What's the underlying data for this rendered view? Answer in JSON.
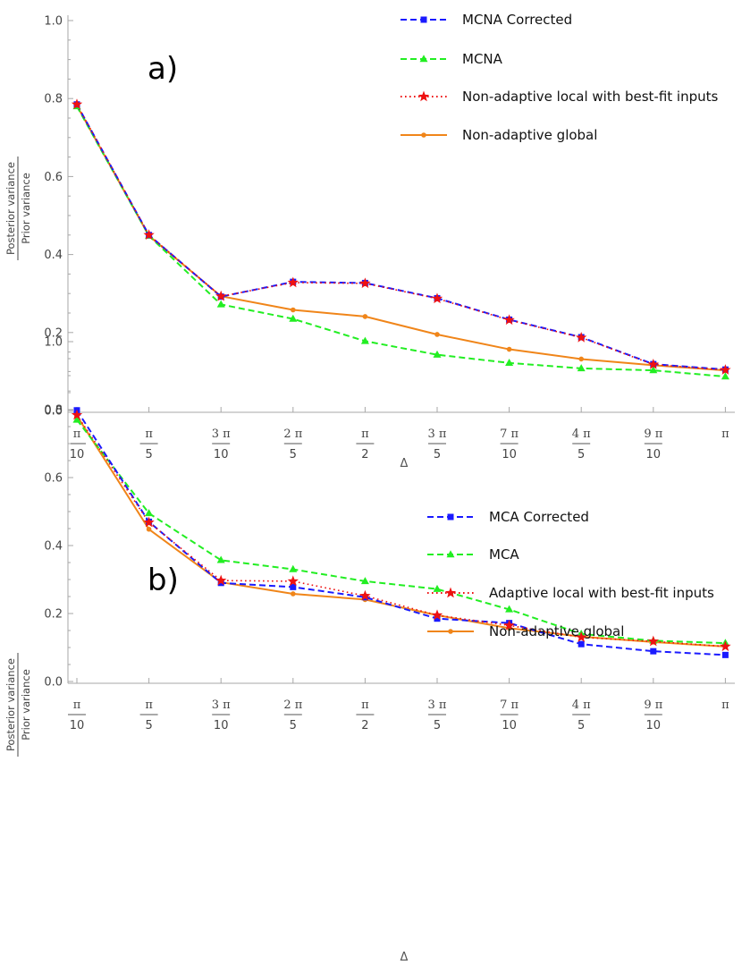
{
  "chart_data": [
    {
      "type": "line",
      "panel_label": "a)",
      "xlabel": "Δ",
      "ylabel_numerator": "Posterior variance",
      "ylabel_denominator": "Prior variance",
      "ylim": [
        0,
        1.0
      ],
      "yticks": [
        "0.0",
        "0.2",
        "0.4",
        "0.6",
        "0.8",
        "1.0"
      ],
      "x_tick_labels": [
        {
          "num": "π",
          "den": "10"
        },
        {
          "num": "π",
          "den": "5"
        },
        {
          "num": "3 π",
          "den": "10"
        },
        {
          "num": "2 π",
          "den": "5"
        },
        {
          "num": "π",
          "den": "2"
        },
        {
          "num": "3 π",
          "den": "5"
        },
        {
          "num": "7 π",
          "den": "10"
        },
        {
          "num": "4 π",
          "den": "5"
        },
        {
          "num": "9 π",
          "den": "10"
        },
        {
          "num": "π",
          "den": ""
        }
      ],
      "series": [
        {
          "name": "MCNA Corrected",
          "color": "#1a1aff",
          "style": "dashed",
          "marker": "square",
          "values": [
            0.785,
            0.45,
            0.292,
            0.33,
            0.327,
            0.288,
            0.233,
            0.188,
            0.119,
            0.105
          ]
        },
        {
          "name": "MCNA",
          "color": "#22ee22",
          "style": "dashed",
          "marker": "triangle",
          "values": [
            0.78,
            0.448,
            0.272,
            0.235,
            0.178,
            0.143,
            0.122,
            0.108,
            0.103,
            0.087
          ]
        },
        {
          "name": "Non-adaptive local with best-fit inputs",
          "color": "#ee1111",
          "style": "dotted",
          "marker": "star",
          "values": [
            0.785,
            0.45,
            0.293,
            0.328,
            0.326,
            0.287,
            0.232,
            0.187,
            0.118,
            0.104
          ]
        },
        {
          "name": "Non-adaptive global",
          "color": "#f08519",
          "style": "solid",
          "marker": "dot",
          "values": [
            0.782,
            0.448,
            0.293,
            0.258,
            0.241,
            0.195,
            0.157,
            0.132,
            0.116,
            0.103
          ]
        }
      ]
    },
    {
      "type": "line",
      "panel_label": "b)",
      "xlabel": "Δ",
      "ylabel_numerator": "Posterior variance",
      "ylabel_denominator": "Prior variance",
      "ylim": [
        0,
        1.0
      ],
      "yticks": [
        "0.0",
        "0.2",
        "0.4",
        "0.6",
        "0.8",
        "1.0"
      ],
      "x_tick_labels": [
        {
          "num": "π",
          "den": "10"
        },
        {
          "num": "π",
          "den": "5"
        },
        {
          "num": "3 π",
          "den": "10"
        },
        {
          "num": "2 π",
          "den": "5"
        },
        {
          "num": "π",
          "den": "2"
        },
        {
          "num": "3 π",
          "den": "5"
        },
        {
          "num": "7 π",
          "den": "10"
        },
        {
          "num": "4 π",
          "den": "5"
        },
        {
          "num": "9 π",
          "den": "10"
        },
        {
          "num": "π",
          "den": ""
        }
      ],
      "series": [
        {
          "name": "MCA Corrected",
          "color": "#1a1aff",
          "style": "dashed",
          "marker": "square",
          "values": [
            0.798,
            0.47,
            0.29,
            0.278,
            0.248,
            0.185,
            0.172,
            0.11,
            0.089,
            0.078
          ]
        },
        {
          "name": "MCA",
          "color": "#22ee22",
          "style": "dashed",
          "marker": "triangle",
          "values": [
            0.77,
            0.495,
            0.357,
            0.33,
            0.295,
            0.272,
            0.212,
            0.14,
            0.12,
            0.113
          ]
        },
        {
          "name": "Adaptive local with best-fit inputs",
          "color": "#ee1111",
          "style": "dotted",
          "marker": "star",
          "values": [
            0.784,
            0.468,
            0.297,
            0.295,
            0.252,
            0.195,
            0.165,
            0.13,
            0.118,
            0.103
          ]
        },
        {
          "name": "Non-adaptive global",
          "color": "#f08519",
          "style": "solid",
          "marker": "dot",
          "values": [
            0.782,
            0.448,
            0.292,
            0.258,
            0.241,
            0.195,
            0.157,
            0.132,
            0.116,
            0.103
          ]
        }
      ]
    }
  ]
}
